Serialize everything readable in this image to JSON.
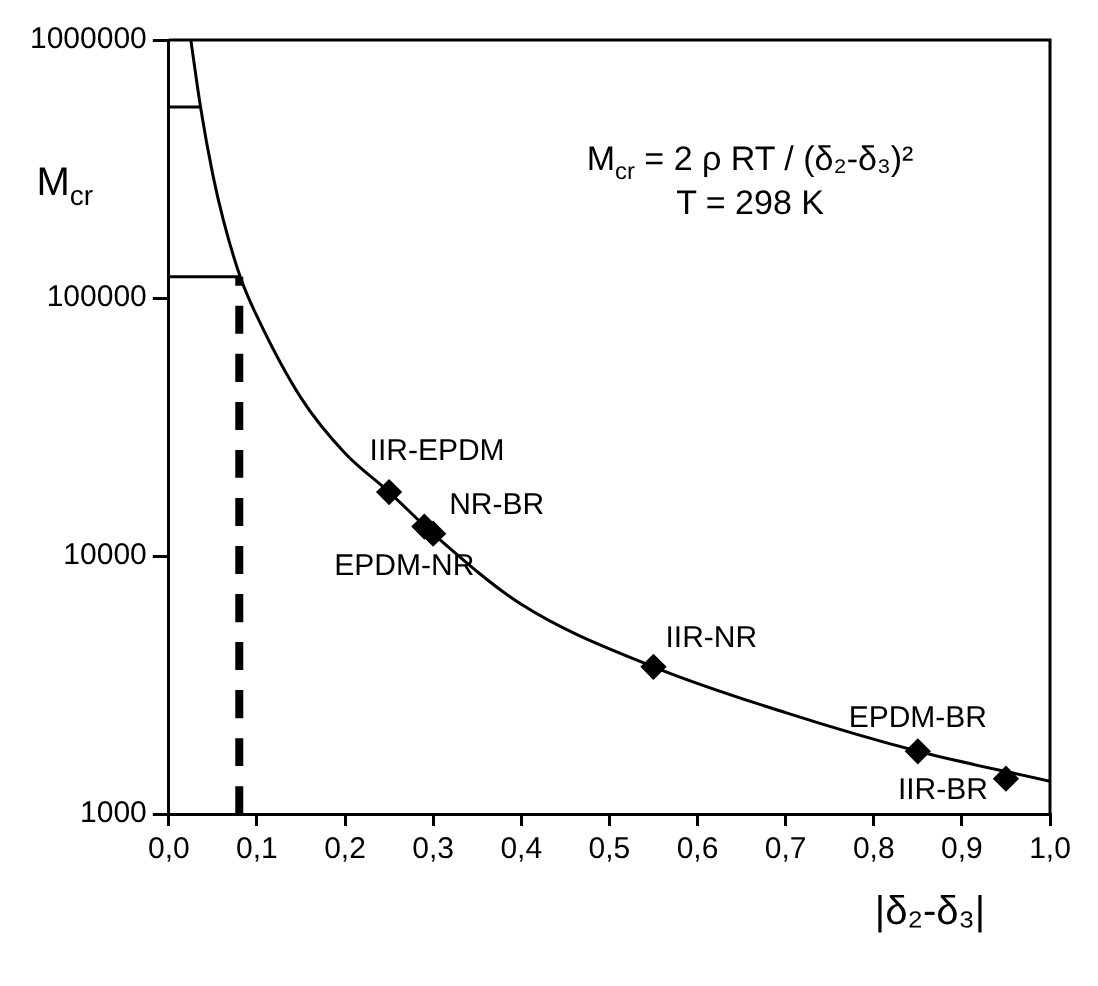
{
  "chart_data": {
    "type": "line",
    "xlabel": "|δ₂-δ₃|",
    "ylabel": "M$_{cr}$",
    "annotations": [
      "M$_{cr}$ = 2 ρ RT / (δ₂-δ₃)²",
      "T = 298 K",
      {
        "text": "IIR-EPDM",
        "x": 0.25,
        "y": 17700
      },
      {
        "text": "EPDM-NR",
        "x": 0.29,
        "y": 13000
      },
      {
        "text": "NR-BR",
        "x": 0.3,
        "y": 12200
      },
      {
        "text": "IIR-NR",
        "x": 0.55,
        "y": 3720
      },
      {
        "text": "EPDM-BR",
        "x": 0.85,
        "y": 1750
      },
      {
        "text": "IIR-BR",
        "x": 0.95,
        "y": 1370
      }
    ],
    "xlim": [
      0,
      1
    ],
    "xticks": [
      {
        "value": 0,
        "label": "0,0"
      },
      {
        "value": 0.1,
        "label": "0,1"
      },
      {
        "value": 0.2,
        "label": "0,2"
      },
      {
        "value": 0.3,
        "label": "0,3"
      },
      {
        "value": 0.4,
        "label": "0,4"
      },
      {
        "value": 0.5,
        "label": "0,5"
      },
      {
        "value": 0.6,
        "label": "0,6"
      },
      {
        "value": 0.7,
        "label": "0,7"
      },
      {
        "value": 0.8,
        "label": "0,8"
      },
      {
        "value": 0.9,
        "label": "0,9"
      },
      {
        "value": 1,
        "label": "1,0"
      }
    ],
    "ylim": [
      1000,
      1000000
    ],
    "yticks": [
      1000,
      10000,
      100000,
      1000000
    ],
    "log": "y",
    "grid": false,
    "legend": false,
    "series": [
      {
        "type": "line",
        "color": "#000000",
        "marker": "none",
        "line_style": "solid",
        "x": [
          0.025,
          0.036,
          0.05,
          0.062,
          0.081,
          0.1,
          0.15,
          0.2,
          0.25,
          0.3,
          0.4,
          0.55,
          0.7,
          0.85,
          1.0
        ],
        "values": [
          1000000,
          550000,
          300000,
          200000,
          121000,
          85000,
          41000,
          25000,
          17700,
          12200,
          6500,
          3720,
          2470,
          1750,
          1340
        ]
      },
      {
        "type": "scatter",
        "color": "#000000",
        "marker": "diamond",
        "x": [
          0.25,
          0.29,
          0.3,
          0.55,
          0.85,
          0.95
        ],
        "values": [
          17700,
          13000,
          12200,
          3720,
          1750,
          1370
        ]
      },
      {
        "type": "line",
        "color": "#000000",
        "marker": "none",
        "line_style": "dashed",
        "x": [
          0.08,
          0.08
        ],
        "values": [
          1000,
          121000
        ]
      },
      {
        "type": "line",
        "color": "#000000",
        "marker": "none",
        "line_style": "solid",
        "x": [
          0,
          0.08
        ],
        "values": [
          121000,
          121000
        ]
      },
      {
        "type": "line",
        "color": "#000000",
        "marker": "none",
        "line_style": "solid",
        "x": [
          0,
          0.036
        ],
        "values": [
          550000,
          550000
        ]
      }
    ]
  }
}
